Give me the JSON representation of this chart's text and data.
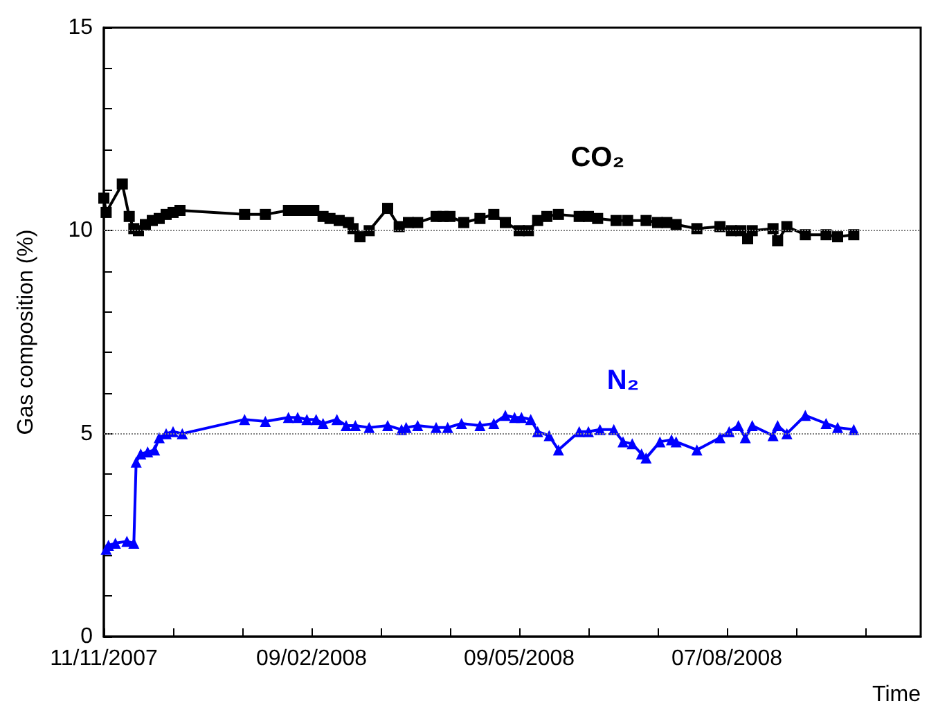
{
  "chart_data": {
    "type": "line",
    "ylabel": "Gas composition (%)",
    "xlabel": "Time",
    "xlim": [
      "2007-11-11",
      "2008-10-30"
    ],
    "xticks": [
      {
        "value": "2007-11-11",
        "label": "11/11/2007"
      },
      {
        "value": "2007-12-11",
        "label": null
      },
      {
        "value": "2008-01-10",
        "label": null
      },
      {
        "value": "2008-02-09",
        "label": "09/02/2008"
      },
      {
        "value": "2008-03-10",
        "label": null
      },
      {
        "value": "2008-04-09",
        "label": null
      },
      {
        "value": "2008-05-09",
        "label": "09/05/2008"
      },
      {
        "value": "2008-06-08",
        "label": null
      },
      {
        "value": "2008-07-08",
        "label": null
      },
      {
        "value": "2008-08-07",
        "label": "07/08/2008"
      },
      {
        "value": "2008-09-06",
        "label": null
      },
      {
        "value": "2008-10-06",
        "label": null
      }
    ],
    "ylim": [
      0,
      15
    ],
    "yticks": [
      0,
      {
        "value": 1,
        "label": null
      },
      {
        "value": 2,
        "label": null
      },
      {
        "value": 3,
        "label": null
      },
      {
        "value": 4,
        "label": null
      },
      5,
      {
        "value": 6,
        "label": null
      },
      {
        "value": 7,
        "label": null
      },
      {
        "value": 8,
        "label": null
      },
      {
        "value": 9,
        "label": null
      },
      10,
      {
        "value": 11,
        "label": null
      },
      {
        "value": 12,
        "label": null
      },
      {
        "value": 13,
        "label": null
      },
      {
        "value": 14,
        "label": null
      },
      15
    ],
    "grid": false,
    "legend": false,
    "line_style": "solid",
    "ref_lines": [
      {
        "axis": "y",
        "value": 10,
        "color": "#808080",
        "line_style": "dotted"
      },
      {
        "axis": "y",
        "value": 5,
        "color": "#808080",
        "line_style": "dotted"
      }
    ],
    "series": [
      {
        "name": "CO₂",
        "color": "#000000",
        "marker": "square",
        "x": [
          "2007-11-11",
          "2007-11-12",
          "2007-11-19",
          "2007-11-22",
          "2007-11-24",
          "2007-11-26",
          "2007-11-29",
          "2007-12-02",
          "2007-12-05",
          "2007-12-08",
          "2007-12-11",
          "2007-12-14",
          "2008-01-11",
          "2008-01-20",
          "2008-01-30",
          "2008-02-03",
          "2008-02-07",
          "2008-02-10",
          "2008-02-14",
          "2008-02-17",
          "2008-02-21",
          "2008-02-25",
          "2008-02-27",
          "2008-03-01",
          "2008-03-05",
          "2008-03-13",
          "2008-03-18",
          "2008-03-22",
          "2008-03-26",
          "2008-04-03",
          "2008-04-06",
          "2008-04-09",
          "2008-04-15",
          "2008-04-22",
          "2008-04-28",
          "2008-05-03",
          "2008-05-09",
          "2008-05-13",
          "2008-05-17",
          "2008-05-21",
          "2008-05-26",
          "2008-06-04",
          "2008-06-08",
          "2008-06-12",
          "2008-06-20",
          "2008-06-25",
          "2008-07-03",
          "2008-07-08",
          "2008-07-12",
          "2008-07-16",
          "2008-07-25",
          "2008-08-04",
          "2008-08-09",
          "2008-08-13",
          "2008-08-16",
          "2008-08-18",
          "2008-08-27",
          "2008-08-29",
          "2008-09-02",
          "2008-09-10",
          "2008-09-19",
          "2008-09-24",
          "2008-10-01"
        ],
        "values": [
          10.8,
          10.45,
          11.15,
          10.35,
          10.05,
          10.0,
          10.15,
          10.25,
          10.3,
          10.4,
          10.45,
          10.5,
          10.4,
          10.4,
          10.5,
          10.5,
          10.5,
          10.5,
          10.35,
          10.3,
          10.25,
          10.2,
          10.05,
          9.85,
          10.0,
          10.55,
          10.1,
          10.2,
          10.2,
          10.35,
          10.35,
          10.35,
          10.2,
          10.3,
          10.4,
          10.2,
          10.0,
          10.0,
          10.25,
          10.35,
          10.4,
          10.35,
          10.35,
          10.3,
          10.25,
          10.25,
          10.25,
          10.2,
          10.2,
          10.15,
          10.05,
          10.1,
          10.0,
          10.0,
          9.8,
          10.0,
          10.05,
          9.75,
          10.1,
          9.9,
          9.9,
          9.85,
          9.9
        ]
      },
      {
        "name": "N₂",
        "color": "#0000ff",
        "marker": "triangle",
        "x": [
          "2007-11-12",
          "2007-11-13",
          "2007-11-16",
          "2007-11-21",
          "2007-11-24",
          "2007-11-25",
          "2007-11-27",
          "2007-11-30",
          "2007-12-03",
          "2007-12-05",
          "2007-12-08",
          "2007-12-11",
          "2007-12-15",
          "2008-01-11",
          "2008-01-20",
          "2008-01-30",
          "2008-02-03",
          "2008-02-07",
          "2008-02-11",
          "2008-02-14",
          "2008-02-20",
          "2008-02-24",
          "2008-02-28",
          "2008-03-05",
          "2008-03-13",
          "2008-03-19",
          "2008-03-21",
          "2008-03-26",
          "2008-04-03",
          "2008-04-08",
          "2008-04-14",
          "2008-04-22",
          "2008-04-28",
          "2008-05-03",
          "2008-05-07",
          "2008-05-10",
          "2008-05-14",
          "2008-05-17",
          "2008-05-22",
          "2008-05-26",
          "2008-06-04",
          "2008-06-08",
          "2008-06-13",
          "2008-06-19",
          "2008-06-23",
          "2008-06-27",
          "2008-07-01",
          "2008-07-03",
          "2008-07-09",
          "2008-07-14",
          "2008-07-16",
          "2008-07-25",
          "2008-08-04",
          "2008-08-08",
          "2008-08-12",
          "2008-08-15",
          "2008-08-18",
          "2008-08-27",
          "2008-08-29",
          "2008-09-02",
          "2008-09-10",
          "2008-09-19",
          "2008-09-24",
          "2008-10-01"
        ],
        "values": [
          2.15,
          2.25,
          2.3,
          2.35,
          2.3,
          4.3,
          4.5,
          4.55,
          4.6,
          4.9,
          5.0,
          5.05,
          5.0,
          5.35,
          5.3,
          5.4,
          5.4,
          5.35,
          5.35,
          5.25,
          5.35,
          5.2,
          5.2,
          5.15,
          5.2,
          5.1,
          5.15,
          5.2,
          5.15,
          5.15,
          5.25,
          5.2,
          5.25,
          5.45,
          5.4,
          5.4,
          5.35,
          5.05,
          4.95,
          4.6,
          5.05,
          5.05,
          5.1,
          5.1,
          4.8,
          4.75,
          4.5,
          4.4,
          4.8,
          4.85,
          4.8,
          4.6,
          4.9,
          5.05,
          5.2,
          4.9,
          5.2,
          4.95,
          5.2,
          5.0,
          5.45,
          5.25,
          5.15,
          5.1
        ]
      }
    ]
  }
}
